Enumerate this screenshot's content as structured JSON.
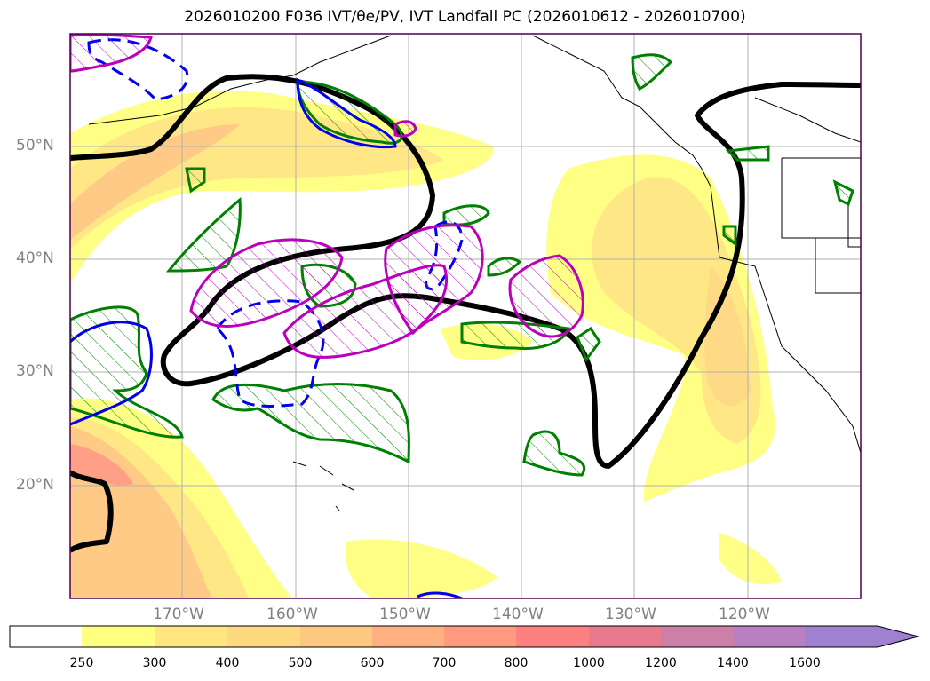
{
  "title": "2026010200 F036 IVT/θe/PV, IVT Landfall PC (2026010612 - 2026010700)",
  "lat_labels": [
    "50°N",
    "40°N",
    "30°N",
    "20°N"
  ],
  "lon_labels": [
    "170°W",
    "160°W",
    "150°W",
    "140°W",
    "130°W",
    "120°W"
  ],
  "colorbar": {
    "ticks": [
      "250",
      "300",
      "400",
      "500",
      "600",
      "700",
      "800",
      "1000",
      "1200",
      "1400",
      "1600"
    ],
    "colors": [
      "#ffffff",
      "#ffff80",
      "#ffe680",
      "#ffd980",
      "#ffc880",
      "#ffb080",
      "#ff9a80",
      "#ff8080",
      "#e87a90",
      "#cc80a8",
      "#b880c0",
      "#a080d0"
    ],
    "extend": "max"
  },
  "contour_colors": {
    "ivt_outline": "#000000",
    "pv_positive": "#008000",
    "pv_blue": "#0000ee",
    "pv_magenta": "#bb00bb"
  }
}
